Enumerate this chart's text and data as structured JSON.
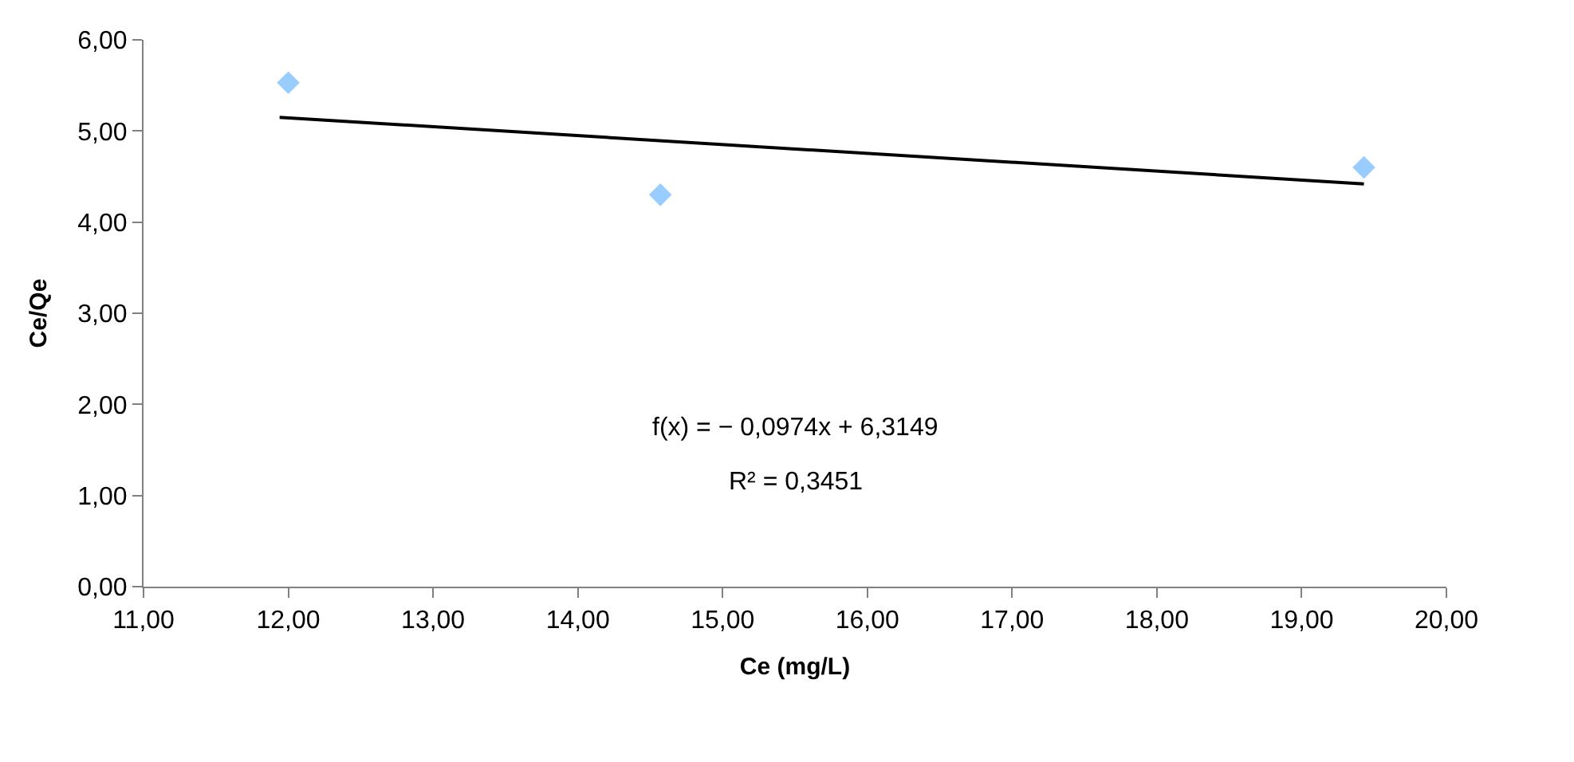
{
  "chart_data": {
    "type": "scatter",
    "xlabel": "Ce (mg/L)",
    "ylabel": "Ce/Qe",
    "series": [
      {
        "color": "#99ccff",
        "marker": "diamond",
        "x": [
          12.0,
          14.57,
          19.43
        ],
        "values": [
          5.53,
          4.3,
          4.6
        ]
      },
      {
        "type": "line",
        "color": "#000000",
        "marker": "none",
        "line_style": "solid",
        "x": [
          11.94,
          19.43
        ],
        "values": [
          5.15,
          4.42
        ]
      }
    ],
    "xlim": [
      11,
      20
    ],
    "xticks": [
      {
        "value": 11,
        "label": "11,00"
      },
      {
        "value": 12,
        "label": "12,00"
      },
      {
        "value": 13,
        "label": "13,00"
      },
      {
        "value": 14,
        "label": "14,00"
      },
      {
        "value": 15,
        "label": "15,00"
      },
      {
        "value": 16,
        "label": "16,00"
      },
      {
        "value": 17,
        "label": "17,00"
      },
      {
        "value": 18,
        "label": "18,00"
      },
      {
        "value": 19,
        "label": "19,00"
      },
      {
        "value": 20,
        "label": "20,00"
      }
    ],
    "ylim": [
      0,
      6
    ],
    "yticks": [
      {
        "value": 0,
        "label": "0,00"
      },
      {
        "value": 1,
        "label": "1,00"
      },
      {
        "value": 2,
        "label": "2,00"
      },
      {
        "value": 3,
        "label": "3,00"
      },
      {
        "value": 4,
        "label": "4,00"
      },
      {
        "value": 5,
        "label": "5,00"
      },
      {
        "value": 6,
        "label": "6,00"
      }
    ],
    "annotations": [
      "f(x) = − 0,0974x + 6,3149",
      "R² = 0,3451"
    ]
  }
}
